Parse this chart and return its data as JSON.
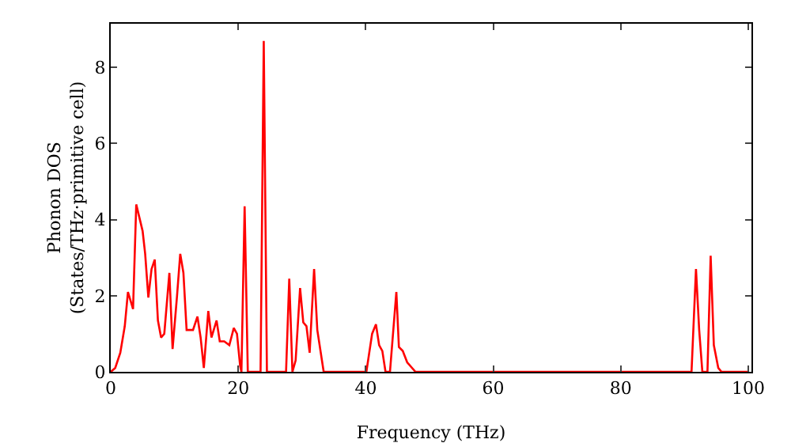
{
  "chart_data": {
    "type": "line",
    "xlabel": "Frequency (THz)",
    "ylabel": "Phonon DOS\n(States/THz·primitive cell)",
    "xlim": [
      0,
      100.5
    ],
    "ylim": [
      0,
      9.15
    ],
    "xticks": [
      0,
      20,
      40,
      60,
      80,
      100
    ],
    "yticks": [
      0,
      2,
      4,
      6,
      8
    ],
    "grid": false,
    "legend": false,
    "marker": "none",
    "line_style": "solid",
    "series": [
      {
        "color": "#ff0000",
        "x": [
          0,
          0.7,
          1.5,
          2.2,
          2.7,
          3.5,
          4,
          5,
          5.4,
          5.9,
          6.4,
          6.9,
          7.4,
          7.9,
          8.4,
          9.2,
          9.7,
          10.4,
          10.9,
          11.4,
          11.9,
          12.9,
          13.6,
          14.1,
          14.6,
          15.3,
          15.8,
          16.6,
          17.1,
          17.8,
          18.6,
          19.3,
          19.8,
          20.3,
          20.5,
          21,
          21.5,
          23.5,
          24,
          24.5,
          27.5,
          28,
          28.5,
          29,
          29.7,
          30.2,
          30.7,
          31.2,
          31.9,
          32.4,
          33.4,
          40.1,
          41,
          41.6,
          42.1,
          42.6,
          43.1,
          43.8,
          44.8,
          45.2,
          45.8,
          46.5,
          47.8,
          91.1,
          91.8,
          92.3,
          92.8,
          93.6,
          94.1,
          94.6,
          95.3,
          95.8,
          100
        ],
        "values": [
          0,
          0.1,
          0.5,
          1.2,
          2.1,
          1.65,
          4.4,
          3.7,
          3.1,
          1.95,
          2.7,
          2.95,
          1.35,
          0.9,
          1.0,
          2.6,
          0.6,
          2.0,
          3.1,
          2.6,
          1.1,
          1.1,
          1.45,
          0.9,
          0.1,
          1.6,
          0.9,
          1.35,
          0.8,
          0.8,
          0.7,
          1.15,
          1.0,
          0.15,
          0,
          4.35,
          0,
          0,
          8.7,
          0,
          0,
          2.45,
          0,
          0.3,
          2.2,
          1.3,
          1.2,
          0.5,
          2.7,
          1.1,
          0,
          0,
          1.0,
          1.25,
          0.7,
          0.55,
          0,
          0,
          2.1,
          0.65,
          0.55,
          0.25,
          0,
          0,
          2.7,
          1.1,
          0,
          0,
          3.05,
          0.7,
          0.1,
          0,
          0
        ]
      }
    ]
  }
}
